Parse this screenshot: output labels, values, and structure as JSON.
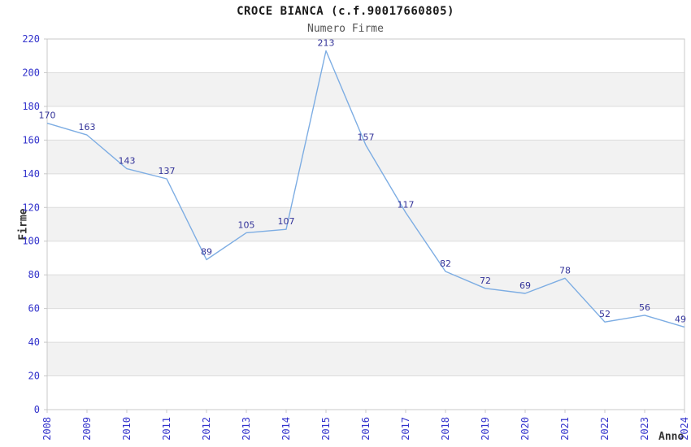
{
  "chart_data": {
    "type": "line",
    "title": "CROCE BIANCA (c.f.90017660805)",
    "subtitle": "Numero Firme",
    "xlabel": "Anno",
    "ylabel": "Firme",
    "categories": [
      "2008",
      "2009",
      "2010",
      "2011",
      "2012",
      "2013",
      "2014",
      "2015",
      "2016",
      "2017",
      "2018",
      "2019",
      "2020",
      "2021",
      "2022",
      "2023",
      "2024"
    ],
    "values": [
      170,
      163,
      143,
      137,
      89,
      105,
      107,
      213,
      157,
      117,
      82,
      72,
      69,
      78,
      52,
      56,
      49
    ],
    "ylim": [
      0,
      220
    ],
    "yticks": [
      0,
      20,
      40,
      60,
      80,
      100,
      120,
      140,
      160,
      180,
      200,
      220
    ],
    "grid": true,
    "legend_position": "none",
    "colors": {
      "line": "#7dade3",
      "axis_tick_label": "#3333cc",
      "data_label": "#333399",
      "band_fill": "#f2f2f2",
      "grid_line": "#dcdcdc",
      "border": "#c8c8c8"
    }
  }
}
